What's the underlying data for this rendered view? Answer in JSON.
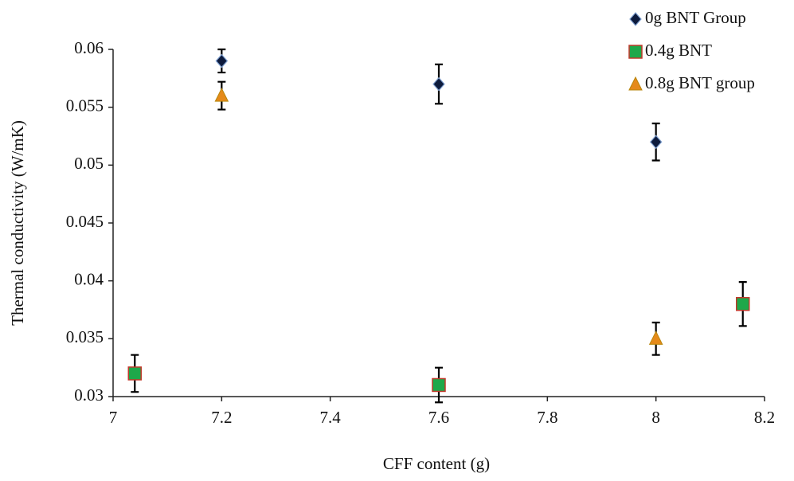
{
  "chart_data": {
    "type": "scatter",
    "x_label": "CFF content (g)",
    "y_label": "Thermal conductivity (W/mK)",
    "xlim": [
      7,
      8.2
    ],
    "xticks": [
      7,
      7.2,
      7.4,
      7.6,
      7.8,
      8,
      8.2
    ],
    "ylim": [
      0.03,
      0.06
    ],
    "yticks": [
      0.03,
      0.035,
      0.04,
      0.045,
      0.05,
      0.055,
      0.06
    ],
    "grid": false,
    "legend": "top-right",
    "series": [
      {
        "name": "0g BNT Group",
        "color": "#0d1b3d",
        "marker": "diamond",
        "x": [
          7.2,
          7.6,
          8
        ],
        "values": [
          0.059,
          0.057,
          0.052
        ],
        "errors": [
          0.001,
          0.0017,
          0.0016
        ]
      },
      {
        "name": "0.4g BNT",
        "color": "#1ea84a",
        "marker": "square",
        "x": [
          7.04,
          7.6,
          8.16
        ],
        "values": [
          0.032,
          0.031,
          0.038
        ],
        "errors": [
          0.0016,
          0.0015,
          0.0019
        ]
      },
      {
        "name": "0.8g BNT group",
        "color": "#e58a1a",
        "marker": "triangle",
        "x": [
          7.2,
          8
        ],
        "values": [
          0.056,
          0.035
        ],
        "errors": [
          0.0012,
          0.0014
        ]
      }
    ]
  }
}
